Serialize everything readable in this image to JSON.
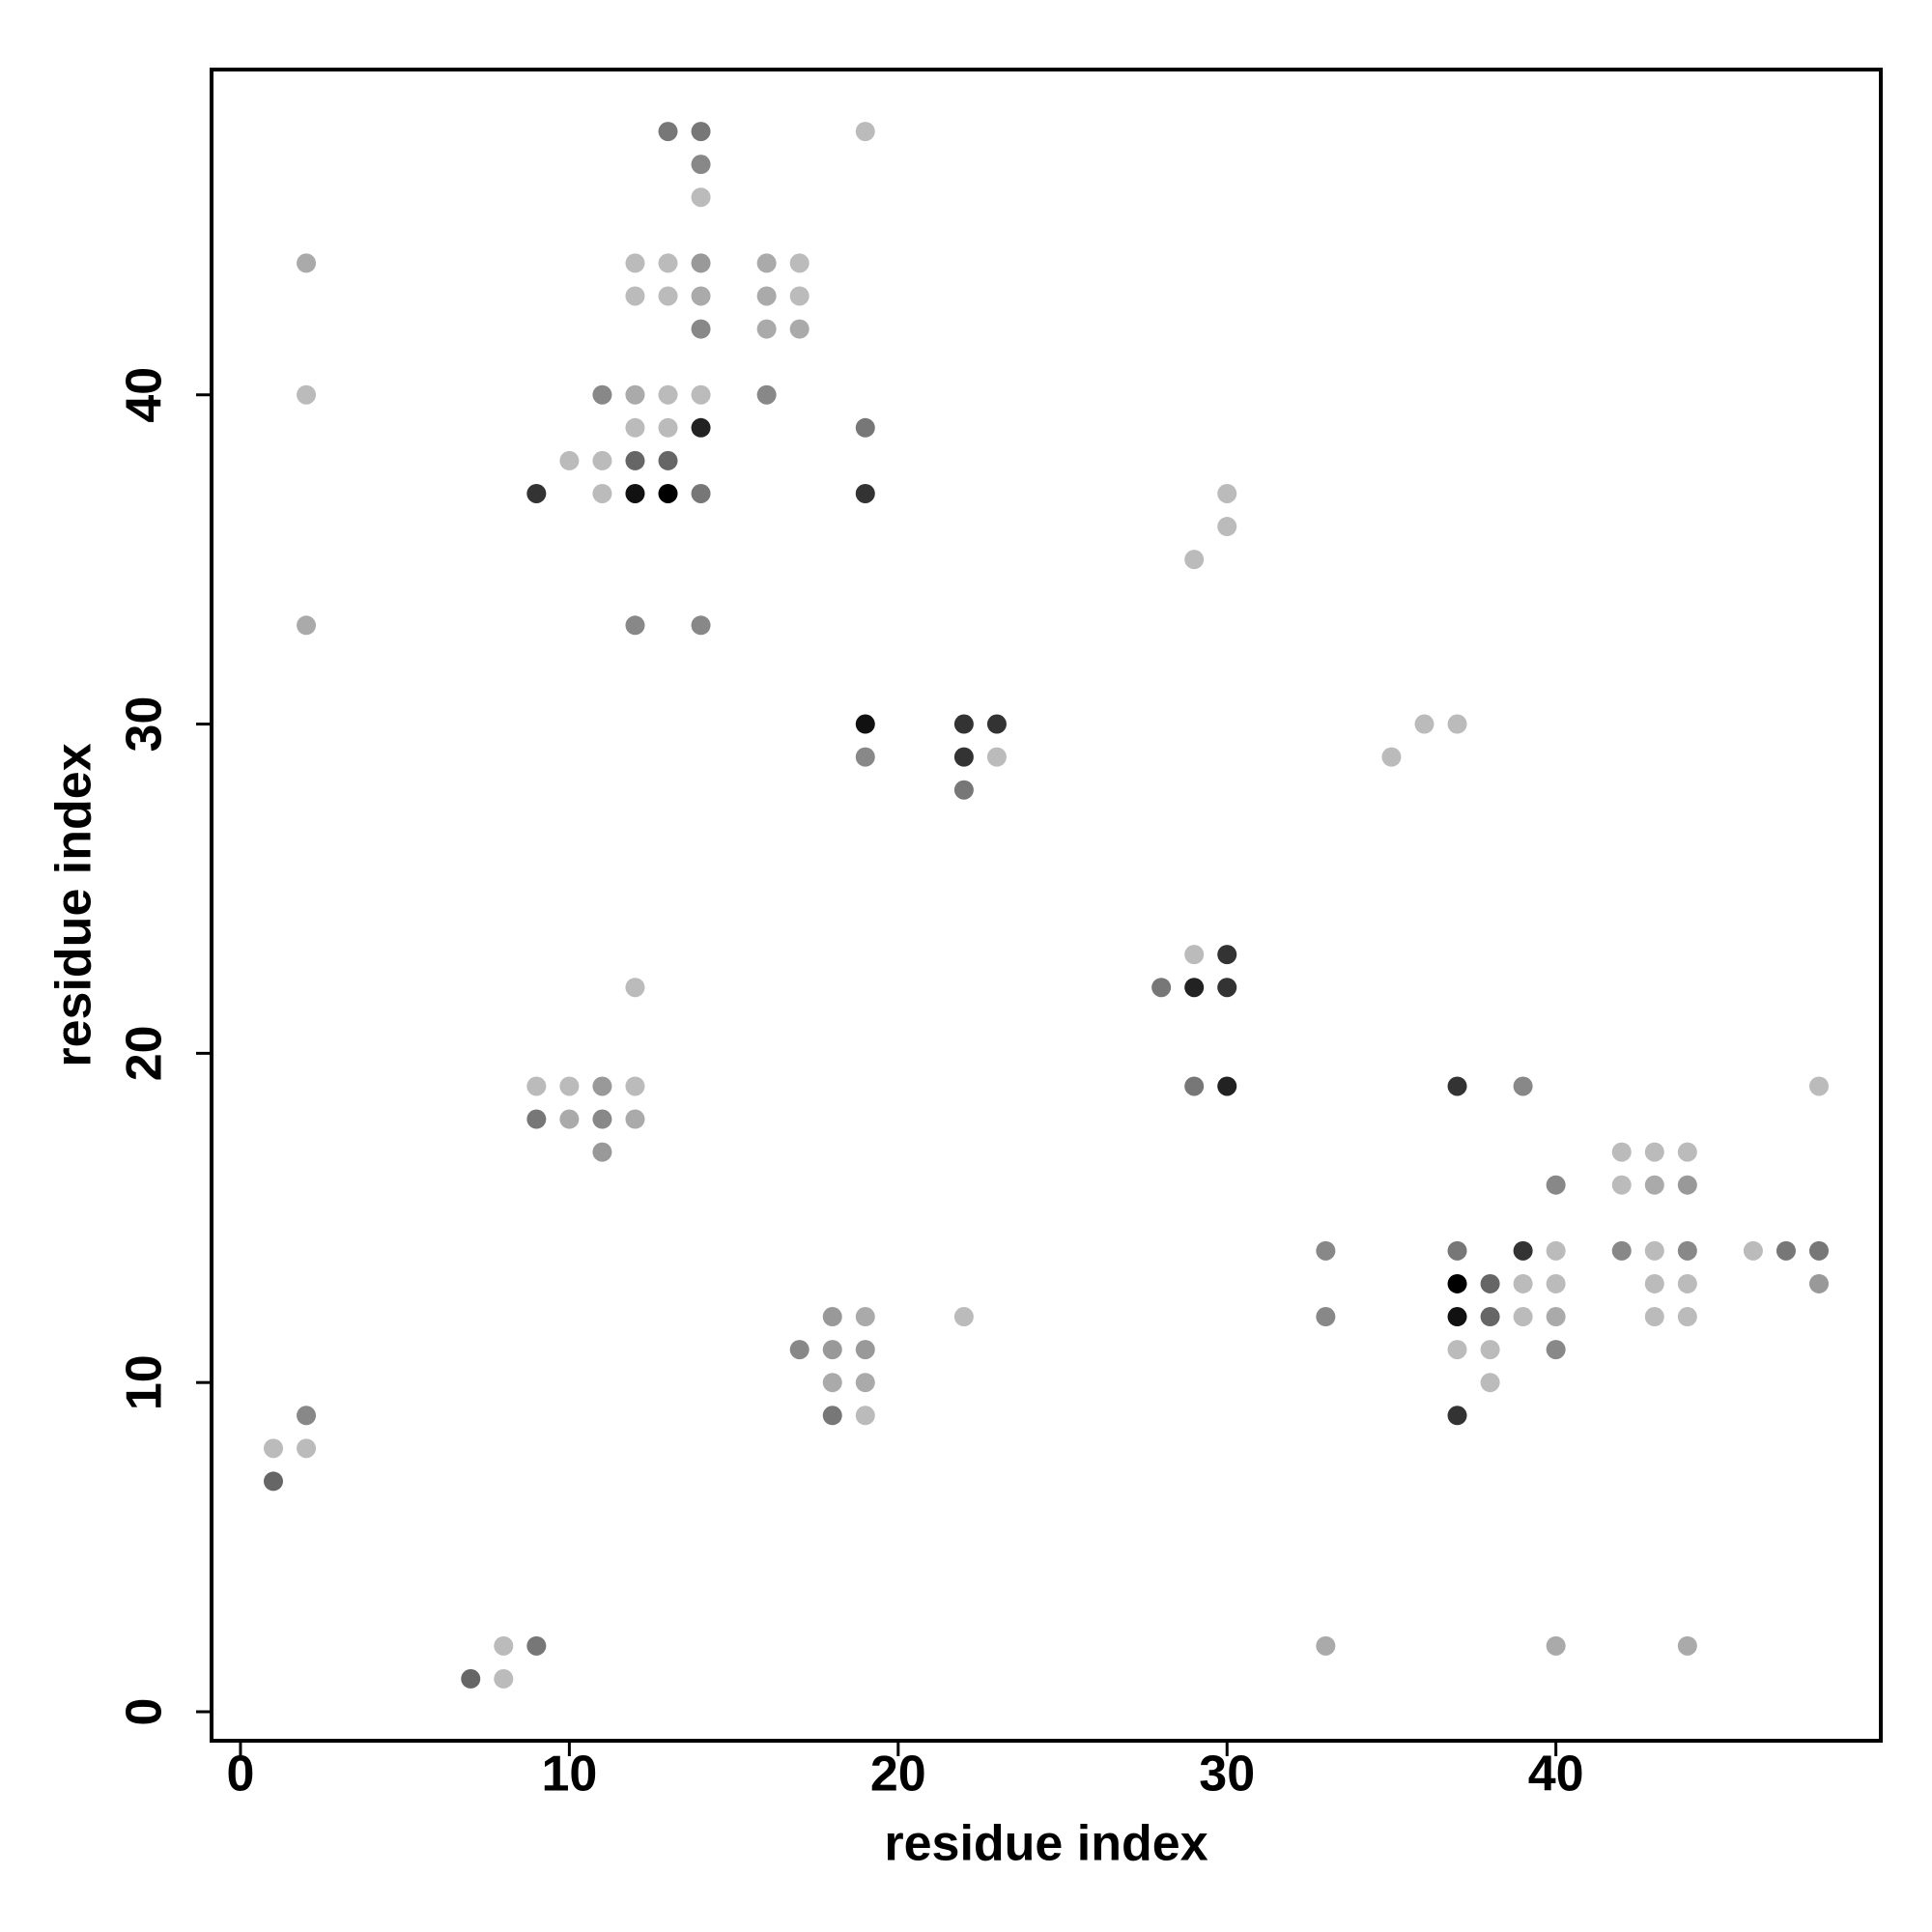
{
  "chart_data": {
    "type": "scatter",
    "x_label": "residue index",
    "y_label": "residue index",
    "xlim": [
      -0.88,
      49.88
    ],
    "ylim": [
      -0.88,
      49.88
    ],
    "xticks": [
      0,
      10,
      20,
      30,
      40
    ],
    "yticks": [
      0,
      10,
      20,
      30,
      40
    ],
    "x": [
      13,
      14,
      19,
      14,
      14,
      2,
      12,
      13,
      14,
      16,
      17,
      12,
      13,
      14,
      16,
      17,
      14,
      16,
      17,
      2,
      11,
      12,
      13,
      14,
      16,
      12,
      13,
      14,
      19,
      10,
      11,
      12,
      13,
      9,
      11,
      12,
      13,
      14,
      19,
      30,
      30,
      29,
      2,
      12,
      14,
      19,
      22,
      23,
      36,
      37,
      19,
      22,
      23,
      35,
      22,
      29,
      30,
      12,
      28,
      29,
      30,
      9,
      10,
      11,
      12,
      29,
      30,
      37,
      39,
      48,
      9,
      10,
      11,
      12,
      11,
      42,
      43,
      44,
      40,
      42,
      43,
      44,
      33,
      37,
      39,
      40,
      42,
      43,
      44,
      46,
      47,
      48,
      37,
      38,
      39,
      40,
      43,
      44,
      48,
      18,
      19,
      22,
      33,
      37,
      38,
      39,
      40,
      43,
      44,
      17,
      18,
      19,
      37,
      38,
      40,
      18,
      19,
      38,
      2,
      18,
      19,
      37,
      1,
      2,
      1,
      8,
      9,
      33,
      40,
      44,
      7,
      8
    ],
    "y": [
      48,
      48,
      48,
      47,
      46,
      44,
      44,
      44,
      44,
      44,
      44,
      43,
      43,
      43,
      43,
      43,
      42,
      42,
      42,
      40,
      40,
      40,
      40,
      40,
      40,
      39,
      39,
      39,
      39,
      38,
      38,
      38,
      38,
      37,
      37,
      37,
      37,
      37,
      37,
      37,
      36,
      35,
      33,
      33,
      33,
      30,
      30,
      30,
      30,
      30,
      29,
      29,
      29,
      29,
      28,
      23,
      23,
      22,
      22,
      22,
      22,
      19,
      19,
      19,
      19,
      19,
      19,
      19,
      19,
      19,
      18,
      18,
      18,
      18,
      17,
      17,
      17,
      17,
      16,
      16,
      16,
      16,
      14,
      14,
      14,
      14,
      14,
      14,
      14,
      14,
      14,
      14,
      13,
      13,
      13,
      13,
      13,
      13,
      13,
      12,
      12,
      12,
      12,
      12,
      12,
      12,
      12,
      12,
      12,
      11,
      11,
      11,
      11,
      11,
      11,
      10,
      10,
      10,
      9,
      9,
      9,
      9,
      8,
      8,
      7,
      2,
      2,
      2,
      2,
      2,
      1,
      1
    ],
    "colors": [
      "#777",
      "#777",
      "#bbb",
      "#888",
      "#bbb",
      "#aaa",
      "#bbb",
      "#bbb",
      "#999",
      "#aaa",
      "#bbb",
      "#bbb",
      "#bbb",
      "#aaa",
      "#aaa",
      "#bbb",
      "#888",
      "#aaa",
      "#aaa",
      "#bbb",
      "#888",
      "#aaa",
      "#bbb",
      "#bbb",
      "#888",
      "#bbb",
      "#bbb",
      "#222",
      "#777",
      "#bbb",
      "#bbb",
      "#666",
      "#666",
      "#333",
      "#bbb",
      "#111",
      "#000",
      "#777",
      "#333",
      "#bbb",
      "#bbb",
      "#bbb",
      "#aaa",
      "#888",
      "#888",
      "#111",
      "#333",
      "#333",
      "#bbb",
      "#bbb",
      "#888",
      "#333",
      "#bbb",
      "#bbb",
      "#777",
      "#bbb",
      "#333",
      "#bbb",
      "#777",
      "#222",
      "#333",
      "#bbb",
      "#bbb",
      "#999",
      "#bbb",
      "#777",
      "#222",
      "#333",
      "#888",
      "#bbb",
      "#777",
      "#aaa",
      "#888",
      "#aaa",
      "#999",
      "#bbb",
      "#bbb",
      "#bbb",
      "#888",
      "#bbb",
      "#aaa",
      "#999",
      "#888",
      "#777",
      "#333",
      "#bbb",
      "#888",
      "#bbb",
      "#888",
      "#bbb",
      "#777",
      "#777",
      "#000",
      "#666",
      "#bbb",
      "#bbb",
      "#bbb",
      "#bbb",
      "#999",
      "#999",
      "#aaa",
      "#bbb",
      "#888",
      "#111",
      "#666",
      "#bbb",
      "#aaa",
      "#bbb",
      "#bbb",
      "#888",
      "#999",
      "#999",
      "#bbb",
      "#bbb",
      "#888",
      "#aaa",
      "#aaa",
      "#bbb",
      "#888",
      "#777",
      "#bbb",
      "#333",
      "#bbb",
      "#bbb",
      "#666",
      "#bbb",
      "#777",
      "#aaa",
      "#aaa",
      "#aaa",
      "#666",
      "#bbb"
    ]
  }
}
